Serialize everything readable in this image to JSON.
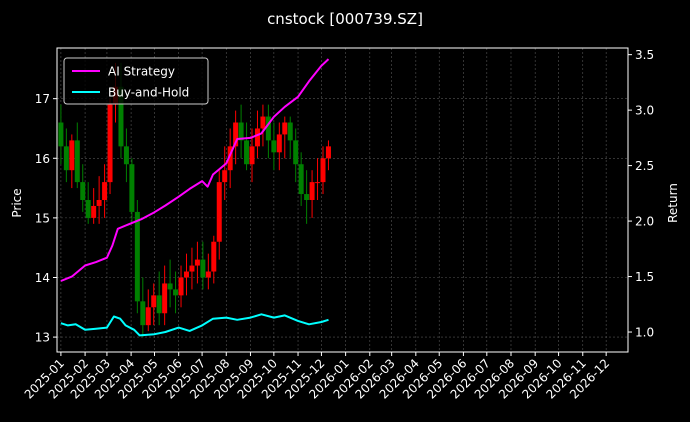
{
  "chart_data": {
    "type": "line",
    "title": "cnstock [000739.SZ]",
    "xlabel": "",
    "ylabel": "Price",
    "ylabel_right": "Return",
    "grid": true,
    "legend_position": "top-left",
    "background": "#000000",
    "x_range": [
      "2024-12-27",
      "2026-12-29"
    ],
    "ylim_left": [
      12.75,
      17.85
    ],
    "ylim_right": [
      0.82,
      3.56
    ],
    "x_ticks": [
      "2025-01",
      "2025-02",
      "2025-03",
      "2025-04",
      "2025-05",
      "2025-06",
      "2025-07",
      "2025-08",
      "2025-09",
      "2025-10",
      "2025-11",
      "2025-12",
      "2026-01",
      "2026-02",
      "2026-03",
      "2026-04",
      "2026-05",
      "2026-06",
      "2026-07",
      "2026-08",
      "2026-09",
      "2026-10",
      "2026-11",
      "2026-12"
    ],
    "y_ticks_left": [
      "13",
      "14",
      "15",
      "16",
      "17"
    ],
    "y_ticks_right": [
      "1.0",
      "1.5",
      "2.0",
      "2.5",
      "3.0",
      "3.5"
    ],
    "price_candles": {
      "name": "Price",
      "up_color": "#ff0000",
      "down_color": "#008000",
      "dates": [
        "2025-01-01",
        "2025-01-08",
        "2025-01-15",
        "2025-01-22",
        "2025-01-29",
        "2025-02-05",
        "2025-02-12",
        "2025-02-19",
        "2025-02-26",
        "2025-03-05",
        "2025-03-12",
        "2025-03-19",
        "2025-03-26",
        "2025-04-02",
        "2025-04-09",
        "2025-04-16",
        "2025-04-23",
        "2025-04-30",
        "2025-05-07",
        "2025-05-14",
        "2025-05-21",
        "2025-05-28",
        "2025-06-04",
        "2025-06-11",
        "2025-06-18",
        "2025-06-25",
        "2025-07-02",
        "2025-07-09",
        "2025-07-16",
        "2025-07-23",
        "2025-07-30",
        "2025-08-06",
        "2025-08-13",
        "2025-08-20",
        "2025-08-27",
        "2025-09-03",
        "2025-09-10",
        "2025-09-17",
        "2025-09-24",
        "2025-10-01",
        "2025-10-08",
        "2025-10-15",
        "2025-10-22",
        "2025-10-29",
        "2025-11-05",
        "2025-11-12",
        "2025-11-19",
        "2025-11-26",
        "2025-12-03",
        "2025-12-10"
      ],
      "open": [
        16.6,
        16.2,
        15.8,
        16.3,
        15.6,
        15.3,
        15.0,
        15.2,
        15.3,
        15.6,
        16.9,
        17.2,
        16.2,
        15.9,
        15.1,
        13.6,
        13.2,
        13.5,
        13.7,
        13.4,
        13.9,
        13.8,
        13.7,
        14.0,
        14.1,
        14.2,
        14.3,
        14.0,
        14.1,
        14.6,
        15.6,
        15.8,
        16.2,
        16.6,
        16.3,
        15.9,
        16.2,
        16.5,
        16.7,
        16.3,
        16.1,
        16.4,
        16.6,
        16.3,
        15.9,
        15.4,
        15.3,
        15.6,
        15.6,
        16.0
      ],
      "high": [
        16.9,
        16.5,
        16.4,
        16.6,
        15.9,
        15.6,
        15.5,
        15.7,
        15.9,
        17.0,
        17.6,
        17.6,
        16.5,
        16.0,
        15.3,
        14.0,
        13.8,
        13.9,
        14.1,
        14.2,
        14.3,
        14.1,
        14.2,
        14.4,
        14.5,
        14.6,
        14.6,
        14.4,
        14.7,
        15.8,
        16.2,
        16.5,
        16.8,
        16.9,
        16.6,
        16.5,
        16.8,
        16.9,
        16.9,
        16.6,
        16.6,
        16.7,
        16.7,
        16.5,
        16.1,
        15.8,
        15.8,
        16.0,
        16.2,
        16.3
      ],
      "low": [
        15.9,
        15.6,
        15.5,
        15.5,
        15.1,
        14.9,
        14.9,
        14.9,
        15.0,
        15.4,
        16.6,
        16.0,
        15.6,
        14.9,
        13.4,
        13.0,
        13.1,
        13.2,
        13.2,
        13.2,
        13.5,
        13.4,
        13.5,
        13.7,
        13.8,
        13.9,
        13.8,
        13.8,
        13.9,
        14.3,
        15.3,
        15.5,
        15.9,
        16.0,
        15.8,
        15.6,
        16.0,
        16.2,
        16.0,
        15.8,
        15.8,
        16.0,
        16.0,
        15.6,
        15.2,
        14.9,
        15.0,
        15.3,
        15.4,
        15.8
      ],
      "close": [
        16.2,
        15.8,
        16.3,
        15.6,
        15.3,
        15.0,
        15.2,
        15.3,
        15.6,
        16.9,
        17.2,
        16.2,
        15.9,
        15.1,
        13.6,
        13.2,
        13.5,
        13.7,
        13.4,
        13.9,
        13.8,
        13.7,
        14.0,
        14.1,
        14.2,
        14.3,
        14.0,
        14.1,
        14.6,
        15.6,
        15.8,
        16.2,
        16.6,
        16.3,
        15.9,
        16.2,
        16.5,
        16.7,
        16.3,
        16.1,
        16.4,
        16.6,
        16.3,
        15.9,
        15.4,
        15.3,
        15.6,
        15.6,
        16.0,
        16.2
      ]
    },
    "series": [
      {
        "name": "AI Strategy",
        "color": "#ff00ff",
        "axis": "right",
        "x": [
          "2025-01-01",
          "2025-01-15",
          "2025-02-01",
          "2025-02-15",
          "2025-03-01",
          "2025-03-08",
          "2025-03-15",
          "2025-04-01",
          "2025-04-15",
          "2025-05-01",
          "2025-05-15",
          "2025-06-01",
          "2025-06-15",
          "2025-07-01",
          "2025-07-08",
          "2025-07-15",
          "2025-08-01",
          "2025-08-15",
          "2025-09-01",
          "2025-09-15",
          "2025-10-01",
          "2025-10-15",
          "2025-11-01",
          "2025-11-15",
          "2025-12-01",
          "2025-12-10"
        ],
        "values": [
          1.46,
          1.5,
          1.6,
          1.63,
          1.67,
          1.78,
          1.93,
          1.98,
          2.02,
          2.08,
          2.14,
          2.22,
          2.29,
          2.36,
          2.31,
          2.42,
          2.52,
          2.74,
          2.75,
          2.79,
          2.94,
          3.03,
          3.12,
          3.26,
          3.4,
          3.46
        ]
      },
      {
        "name": "Buy-and-Hold",
        "color": "#00ffff",
        "axis": "right",
        "x": [
          "2025-01-01",
          "2025-01-10",
          "2025-01-20",
          "2025-02-01",
          "2025-02-15",
          "2025-03-01",
          "2025-03-10",
          "2025-03-18",
          "2025-03-25",
          "2025-04-05",
          "2025-04-12",
          "2025-05-01",
          "2025-05-15",
          "2025-06-01",
          "2025-06-15",
          "2025-07-01",
          "2025-07-15",
          "2025-08-01",
          "2025-08-15",
          "2025-09-01",
          "2025-09-15",
          "2025-10-01",
          "2025-10-15",
          "2025-11-01",
          "2025-11-15",
          "2025-12-01",
          "2025-12-10"
        ],
        "values": [
          1.08,
          1.06,
          1.07,
          1.02,
          1.03,
          1.04,
          1.14,
          1.12,
          1.06,
          1.02,
          0.97,
          0.98,
          1.0,
          1.04,
          1.01,
          1.06,
          1.12,
          1.13,
          1.11,
          1.13,
          1.16,
          1.13,
          1.15,
          1.1,
          1.07,
          1.09,
          1.11
        ]
      }
    ]
  }
}
